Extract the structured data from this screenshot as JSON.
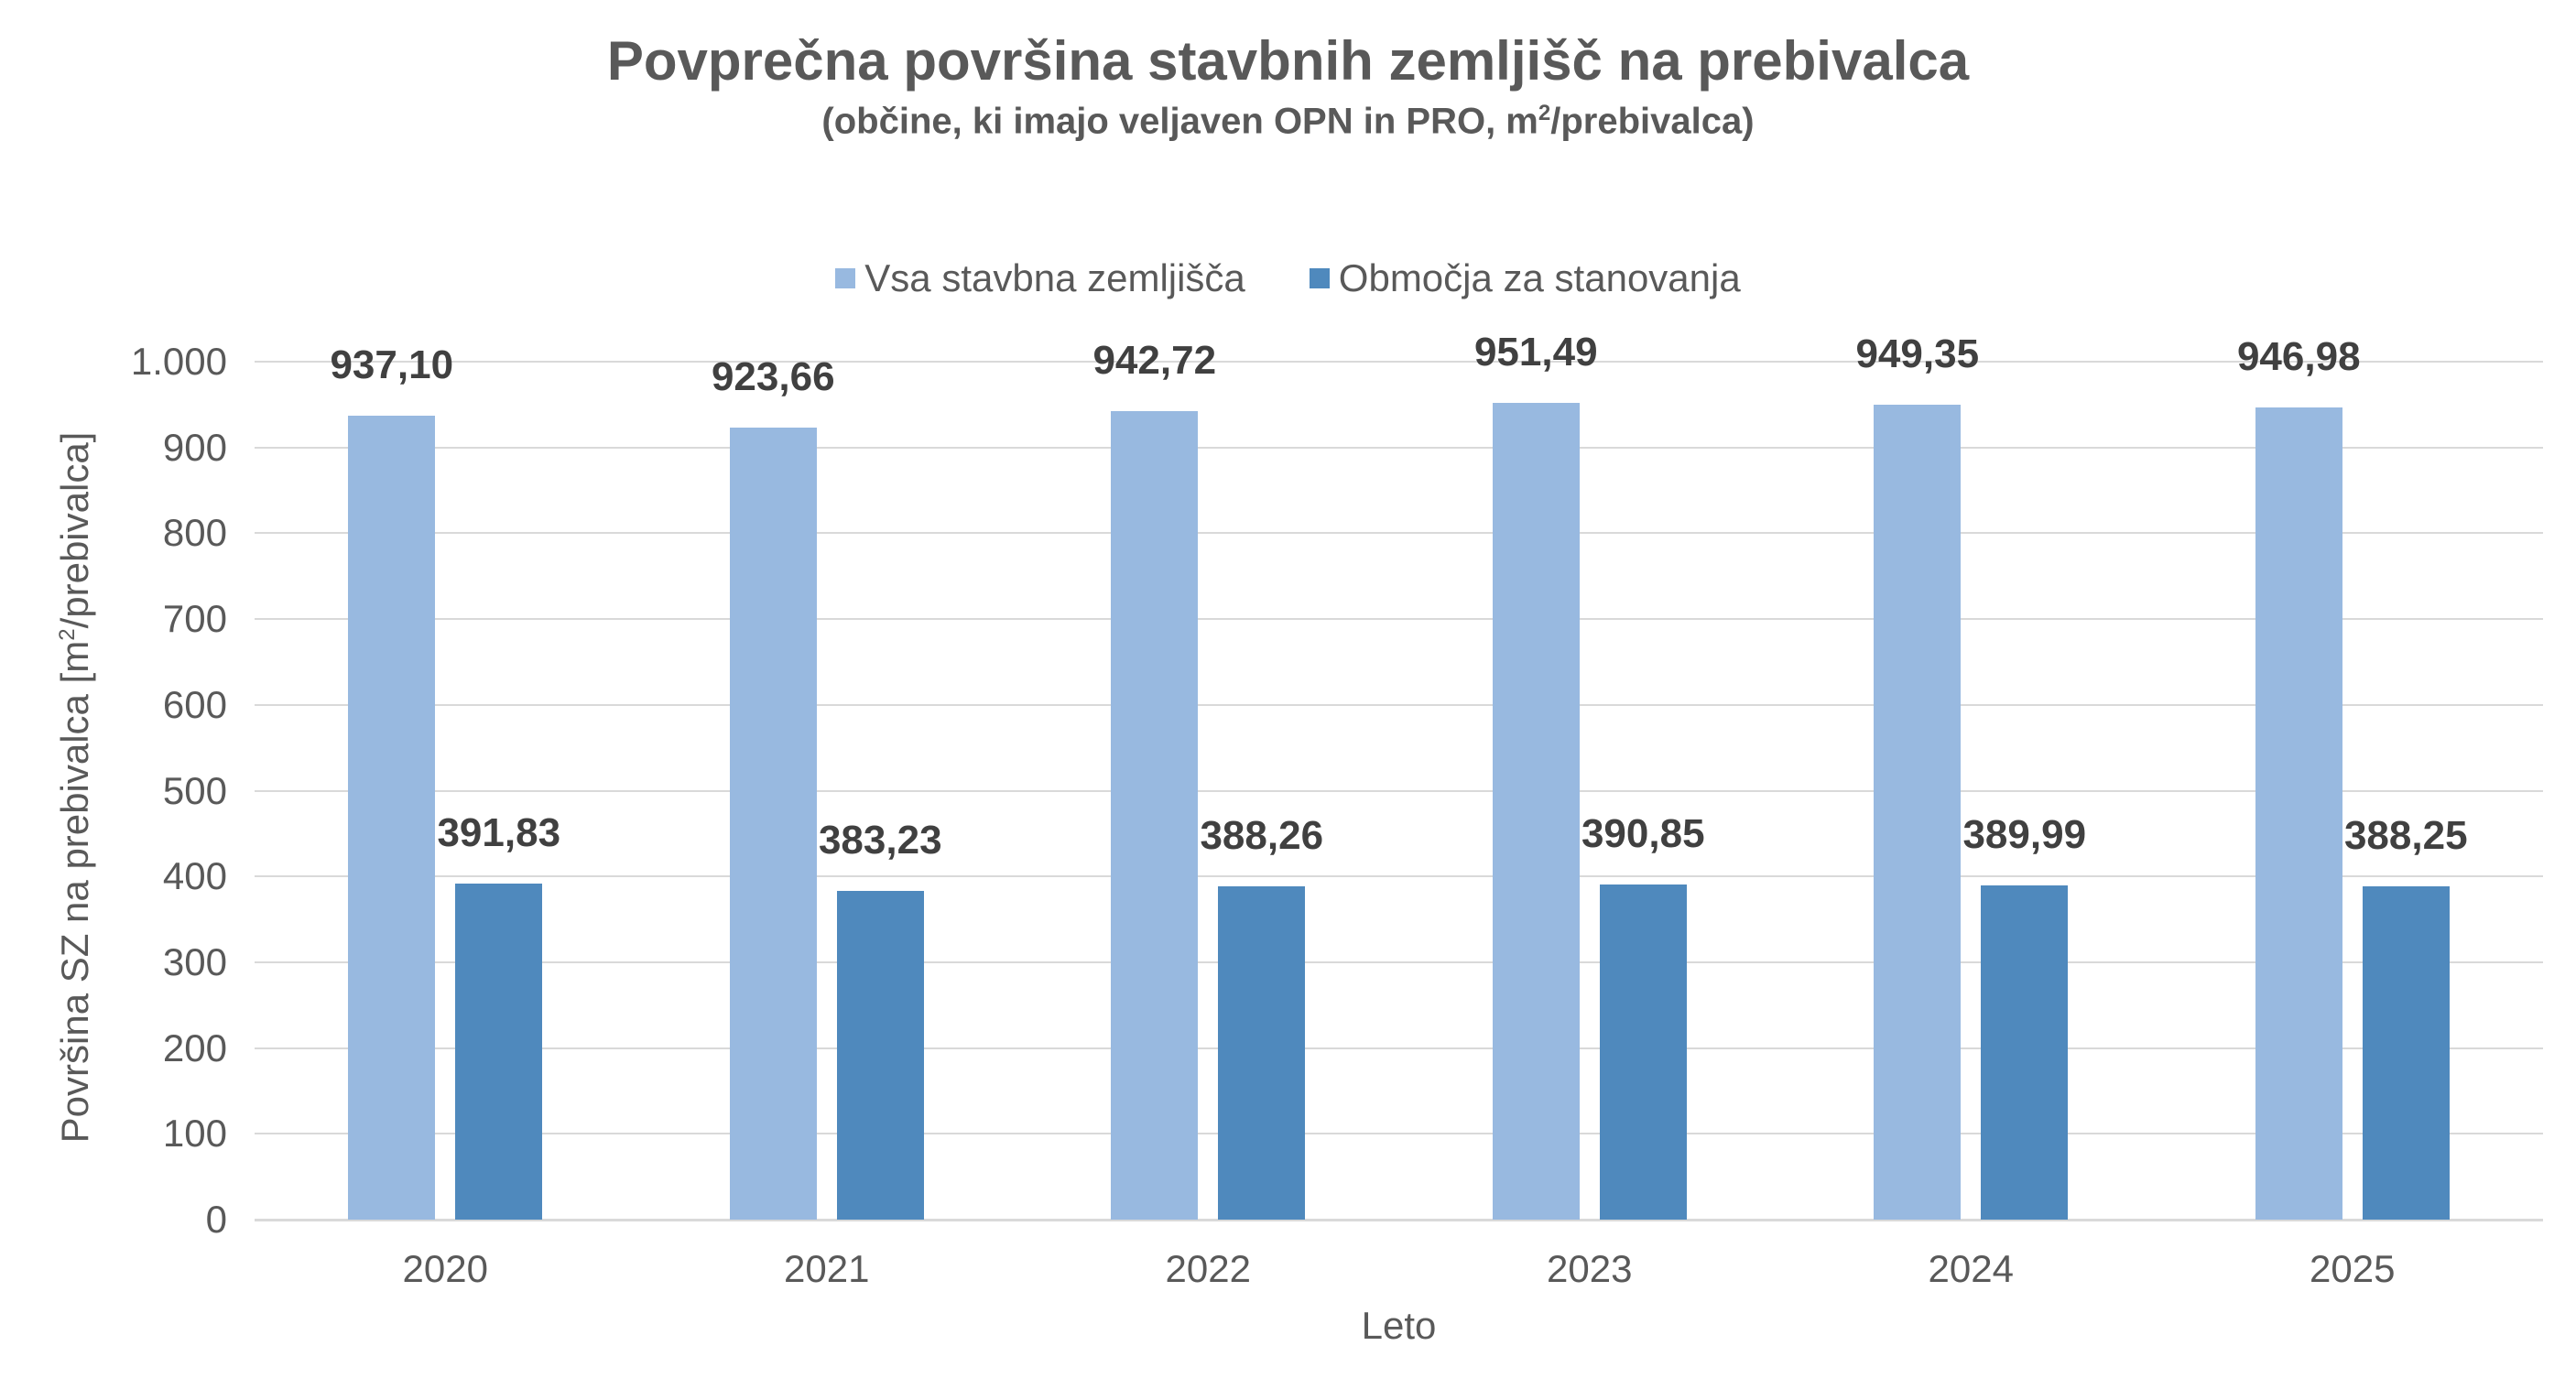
{
  "header": {
    "title": "Povprečna površina stavbnih zemljišč na prebivalca",
    "subtitle_prefix": "(občine, ki imajo veljaven OPN in PRO, m",
    "subtitle_sup": "2",
    "subtitle_suffix": "/prebivalca)"
  },
  "legend": [
    {
      "label": "Vsa stavbna zemljišča",
      "color": "#98b9e0"
    },
    {
      "label": "Območja za stanovanja",
      "color": "#4f89bd"
    }
  ],
  "axes": {
    "ylabel_prefix": "Površina SZ na prebivalca [m",
    "ylabel_sup": "2",
    "ylabel_suffix": "/prebivalca]",
    "xlabel": "Leto",
    "yticks": [
      "0",
      "100",
      "200",
      "300",
      "400",
      "500",
      "600",
      "700",
      "800",
      "900",
      "1.000"
    ]
  },
  "labels": {
    "s1": [
      "937,10",
      "923,66",
      "942,72",
      "951,49",
      "949,35",
      "946,98"
    ],
    "s2": [
      "391,83",
      "383,23",
      "388,26",
      "390,85",
      "389,99",
      "388,25"
    ]
  },
  "chart_data": {
    "type": "bar",
    "title": "Povprečna površina stavbnih zemljišč na prebivalca",
    "subtitle": "(občine, ki imajo veljaven OPN in PRO, m2/prebivalca)",
    "categories": [
      "2020",
      "2021",
      "2022",
      "2023",
      "2024",
      "2025"
    ],
    "series": [
      {
        "name": "Vsa stavbna zemljišča",
        "color": "#98b9e0",
        "values": [
          937.1,
          923.66,
          942.72,
          951.49,
          949.35,
          946.98
        ]
      },
      {
        "name": "Območja za stanovanja",
        "color": "#4f89bd",
        "values": [
          391.83,
          383.23,
          388.26,
          390.85,
          389.99,
          388.25
        ]
      }
    ],
    "xlabel": "Leto",
    "ylabel": "Površina SZ na prebivalca [m2/prebivalca]",
    "ylim": [
      0,
      1000
    ],
    "yticks": [
      0,
      100,
      200,
      300,
      400,
      500,
      600,
      700,
      800,
      900,
      1000
    ],
    "grid": true,
    "legend_position": "top",
    "data_labels": true
  }
}
